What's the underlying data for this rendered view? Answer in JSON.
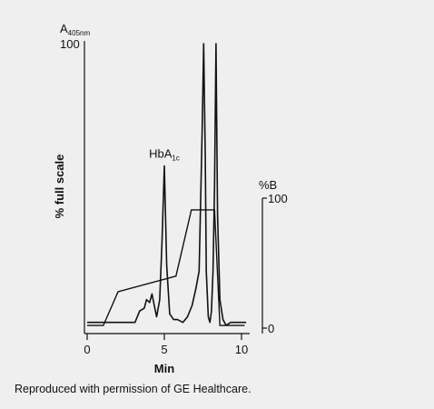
{
  "caption": "Reproduced with permission of GE Healthcare.",
  "chart_data": {
    "type": "line",
    "xlabel": "Min",
    "ylabel": "% full scale",
    "y_left_label_main": "A",
    "y_left_label_sub": "405nm",
    "y_right_label": "%B",
    "xlim": [
      -1,
      11
    ],
    "ylim_left": [
      0,
      100
    ],
    "ylim_right": [
      0,
      100
    ],
    "x_ticks": [
      0,
      5,
      10
    ],
    "y_left_ticks": [
      100
    ],
    "y_right_ticks": [
      0,
      100
    ],
    "annotation": {
      "main": "HbA",
      "sub": "1c",
      "x": 5.0,
      "y": 57
    },
    "series": [
      {
        "axis": "left",
        "x": [
          0,
          3.1,
          3.4,
          3.7,
          3.85,
          4.05,
          4.2,
          4.35,
          4.5,
          4.7,
          4.85,
          5.0,
          5.15,
          5.35,
          5.6,
          5.85,
          6.2,
          6.5,
          6.8,
          7.05,
          7.25,
          7.45,
          7.55,
          7.65,
          7.72,
          7.85,
          7.95,
          8.05,
          8.15,
          8.25,
          8.35,
          8.45,
          8.6,
          8.8,
          9.0,
          9.3,
          10.3
        ],
        "y": [
          2,
          2,
          6,
          7,
          10,
          9,
          12,
          8,
          4,
          10,
          30,
          57,
          22,
          5,
          3,
          3,
          2,
          4,
          8,
          14,
          20,
          70,
          100,
          60,
          20,
          4,
          2,
          6,
          20,
          50,
          100,
          40,
          10,
          3,
          1,
          2,
          2
        ]
      },
      {
        "axis": "right",
        "x": [
          0,
          1.05,
          2.0,
          5.75,
          6.75,
          8.25,
          8.6,
          10.2
        ],
        "y": [
          2,
          2,
          28,
          40,
          91,
          91,
          2,
          2
        ]
      }
    ]
  }
}
